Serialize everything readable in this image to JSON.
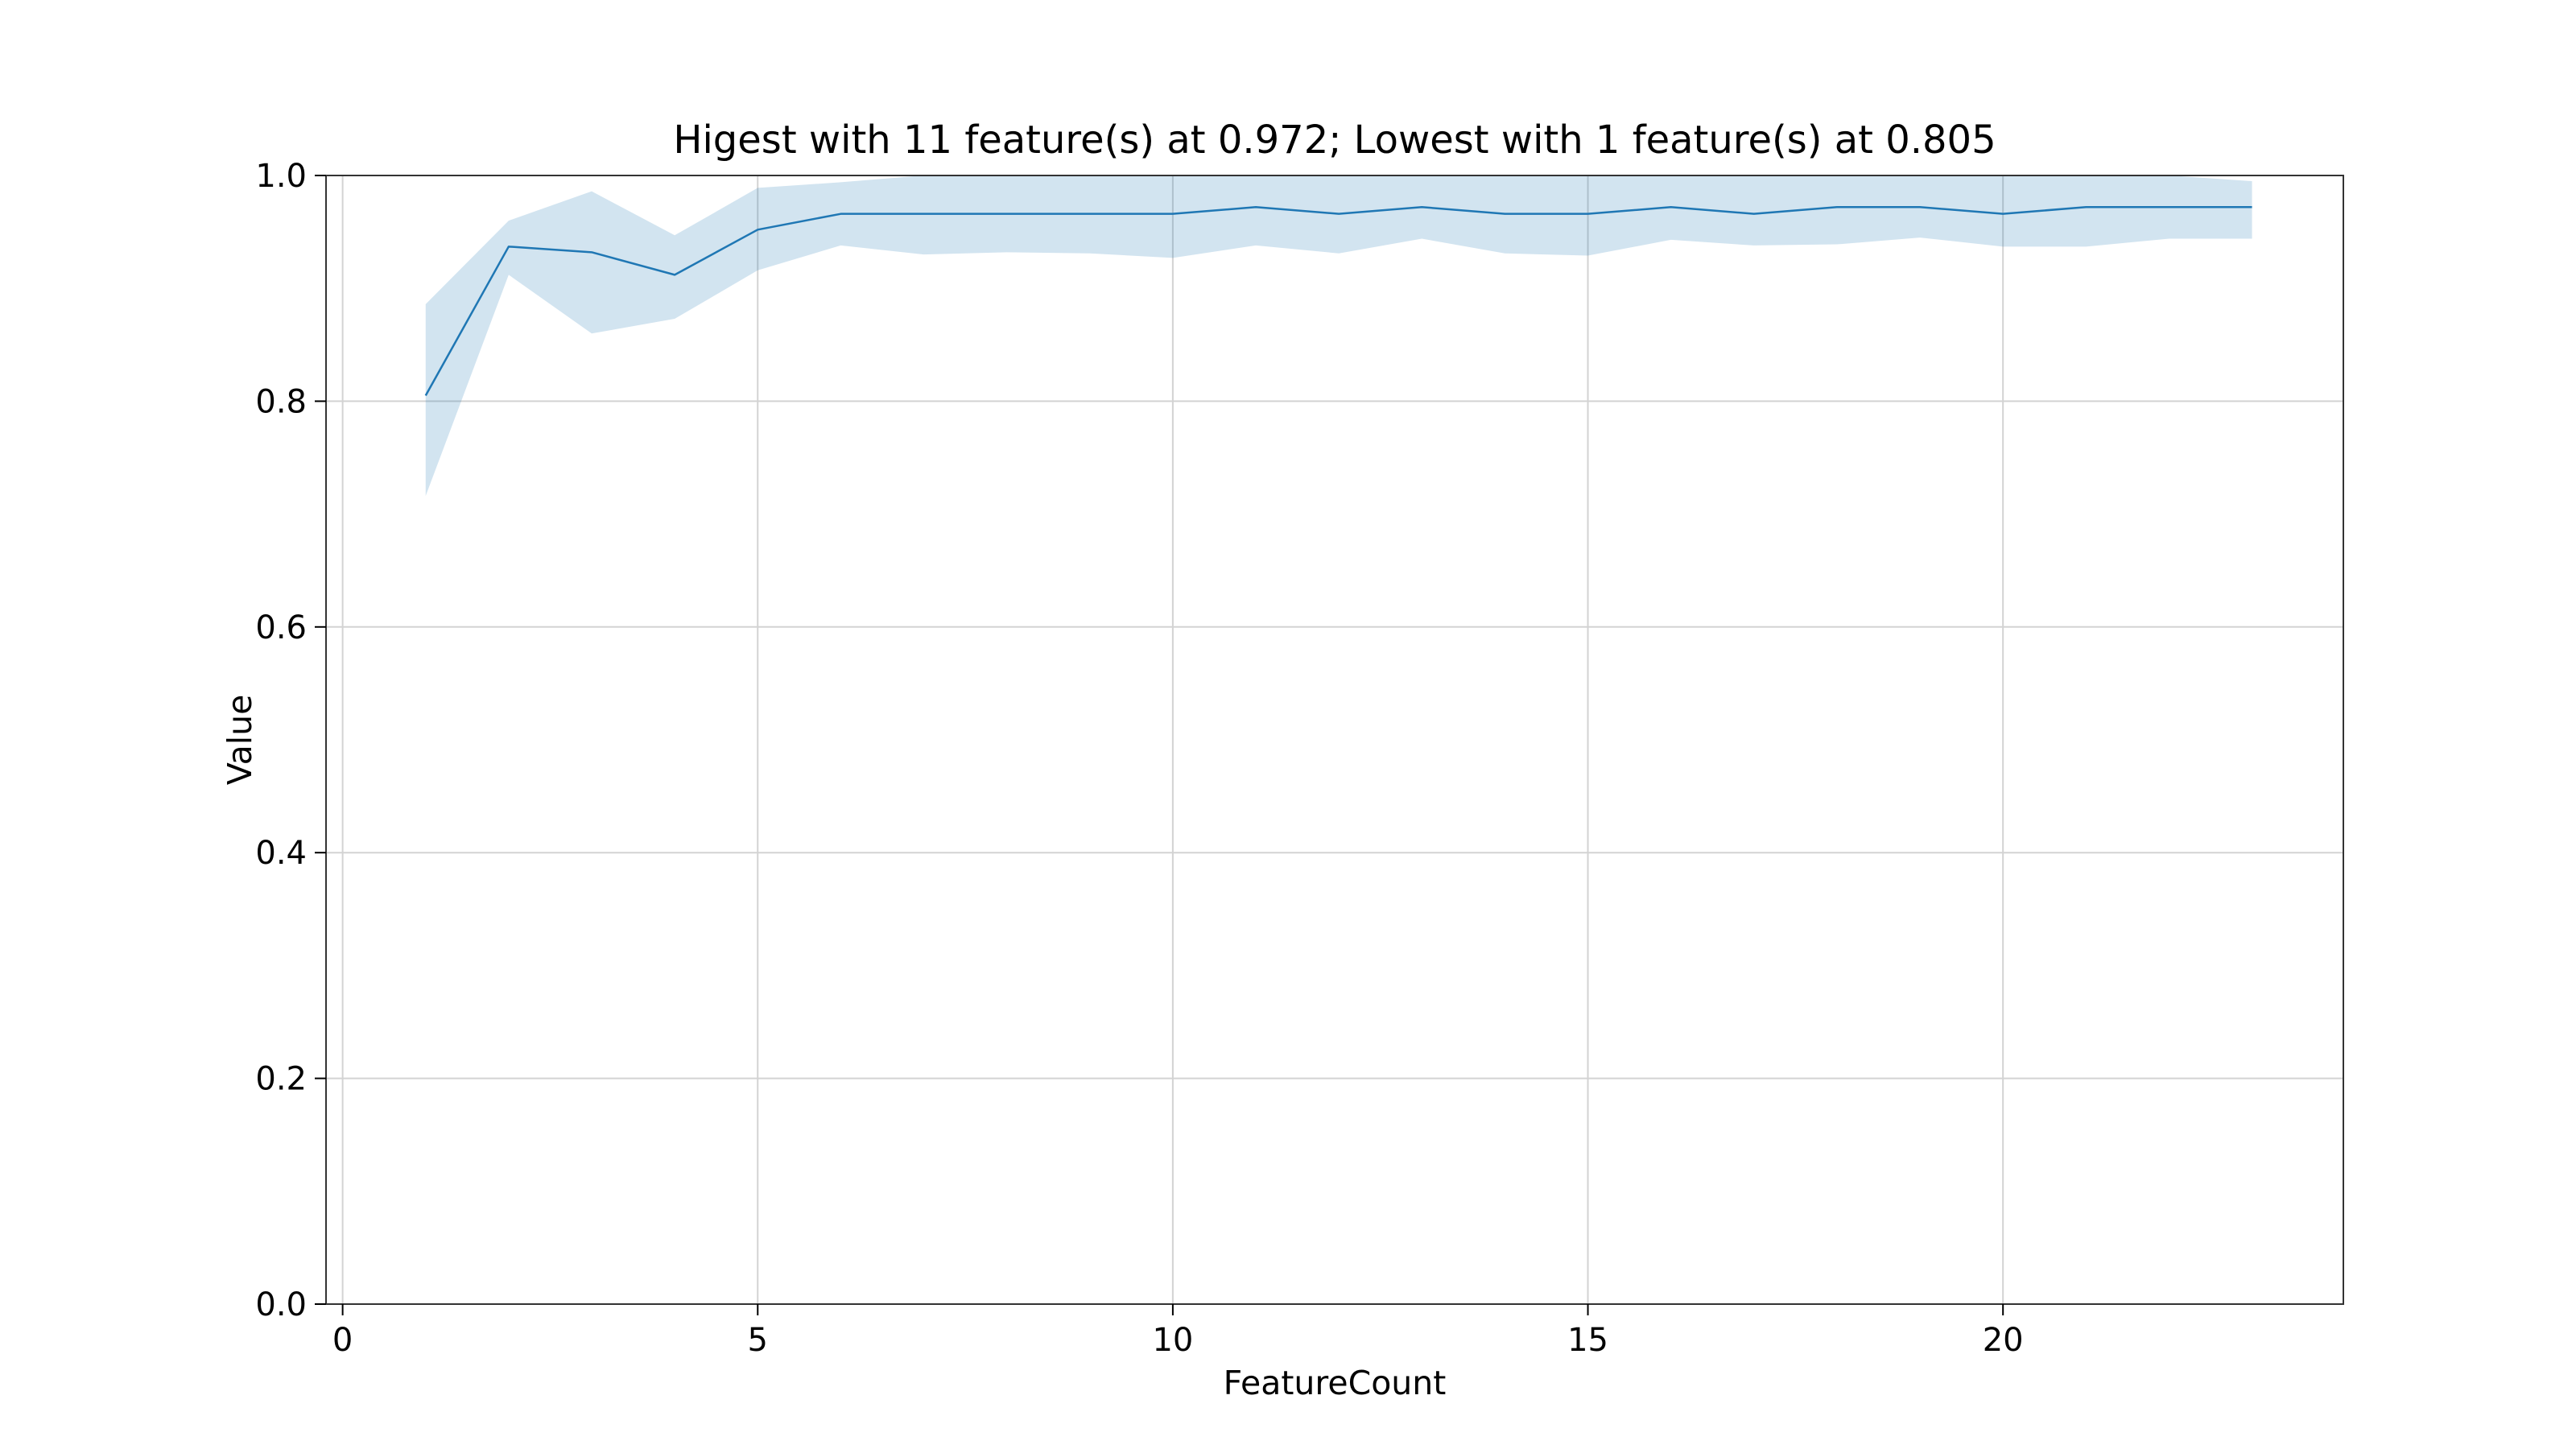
{
  "chart_data": {
    "type": "line",
    "title": "Higest with 11 feature(s) at 0.972; Lowest with 1 feature(s) at 0.805",
    "xlabel": "FeatureCount",
    "ylabel": "Value",
    "xlim": [
      -0.2,
      24.1
    ],
    "ylim": [
      0.0,
      1.0
    ],
    "xticks": [
      0,
      5,
      10,
      15,
      20
    ],
    "xtick_labels": [
      "0",
      "5",
      "10",
      "15",
      "20"
    ],
    "yticks": [
      0.0,
      0.2,
      0.4,
      0.6,
      0.8,
      1.0
    ],
    "ytick_labels": [
      "0.0",
      "0.2",
      "0.4",
      "0.6",
      "0.8",
      "1.0"
    ],
    "grid": true,
    "line_color": "#1f77b4",
    "band_color": "#1f77b4",
    "series": [
      {
        "x": [
          1,
          2,
          3,
          4,
          5,
          6,
          7,
          8,
          9,
          10,
          11,
          12,
          13,
          14,
          15,
          16,
          17,
          18,
          19,
          20,
          21,
          22,
          23
        ],
        "values": [
          0.805,
          0.937,
          0.932,
          0.912,
          0.952,
          0.966,
          0.966,
          0.966,
          0.966,
          0.966,
          0.972,
          0.966,
          0.972,
          0.966,
          0.966,
          0.972,
          0.966,
          0.972,
          0.972,
          0.966,
          0.972,
          0.972,
          0.972
        ],
        "lower": [
          0.716,
          0.912,
          0.86,
          0.873,
          0.916,
          0.938,
          0.93,
          0.932,
          0.931,
          0.927,
          0.938,
          0.931,
          0.944,
          0.931,
          0.929,
          0.943,
          0.938,
          0.939,
          0.945,
          0.937,
          0.937,
          0.944,
          0.944
        ],
        "upper": [
          0.886,
          0.96,
          0.986,
          0.947,
          0.989,
          0.994,
          1.0,
          1.0,
          1.0,
          1.0,
          1.0,
          1.0,
          1.0,
          1.0,
          1.0,
          1.0,
          1.0,
          1.0,
          1.0,
          1.0,
          1.0,
          1.0,
          0.995
        ]
      }
    ]
  }
}
